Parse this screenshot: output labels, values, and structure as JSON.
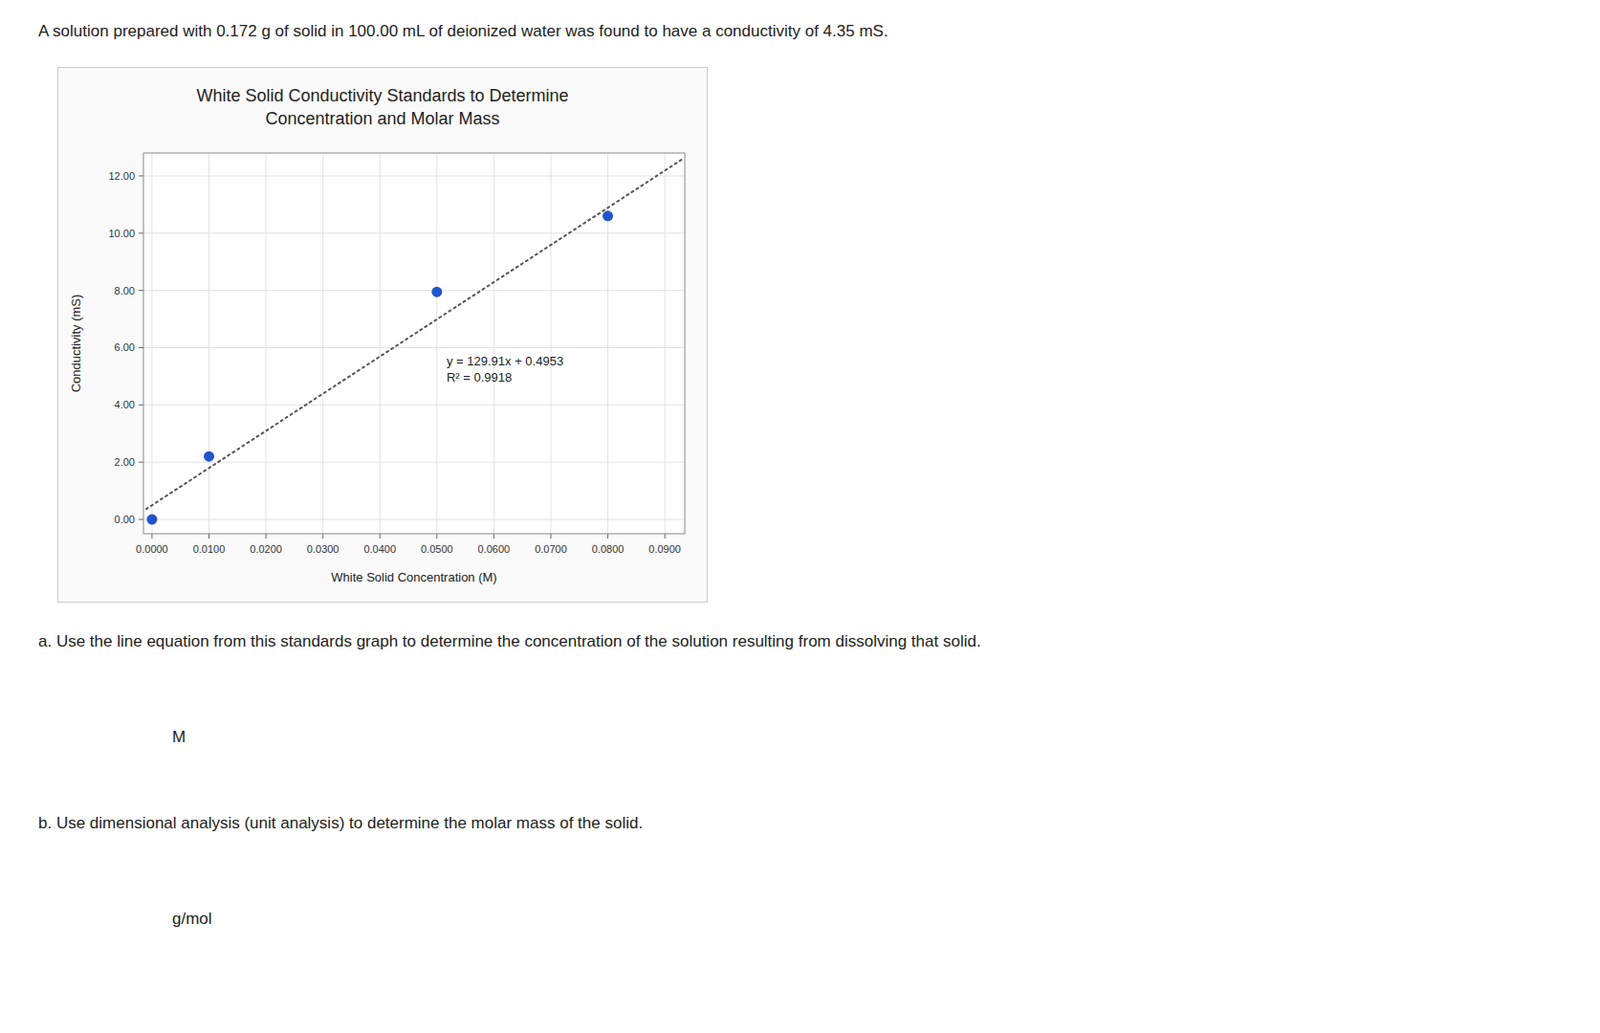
{
  "header": "A solution prepared with 0.172 g of solid in 100.00 mL of deionized water was found to have a conductivity of 4.35 mS.",
  "questions": [
    {
      "text": "a. Use the line equation from this standards graph to determine the concentration of the solution resulting from dissolving that solid.",
      "answer": "M"
    },
    {
      "text": "b. Use dimensional analysis (unit analysis) to determine the molar mass of the solid.",
      "answer": "g/mol"
    }
  ],
  "chart_data": {
    "type": "scatter",
    "title": "White Solid Conductivity Standards to Determine\nConcentration and Molar Mass",
    "xlabel": "White Solid Concentration  (M)",
    "ylabel": "Conductivity (mS)",
    "series": [
      {
        "type": "scatter",
        "color": "#2255cc",
        "marker": "circle",
        "x": [
          0.0,
          0.01,
          0.05,
          0.08
        ],
        "values": [
          0.0,
          2.2,
          7.95,
          10.6
        ]
      },
      {
        "type": "line",
        "color": "#555555",
        "line_style": "dotted",
        "x": [
          -0.001,
          0.093
        ],
        "values": [
          0.36539,
          12.57693
        ]
      }
    ],
    "annotations": [
      "y = 129.91x + 0.4953",
      "R² = 0.9918"
    ],
    "xlim": [
      -0.0015,
      0.0935
    ],
    "ylim": [
      -0.5,
      12.8
    ],
    "xticks": [
      {
        "value": 0.0,
        "label": "0.0000"
      },
      {
        "value": 0.01,
        "label": "0.0100"
      },
      {
        "value": 0.02,
        "label": "0.0200"
      },
      {
        "value": 0.03,
        "label": "0.0300"
      },
      {
        "value": 0.04,
        "label": "0.0400"
      },
      {
        "value": 0.05,
        "label": "0.0500"
      },
      {
        "value": 0.06,
        "label": "0.0600"
      },
      {
        "value": 0.07,
        "label": "0.0700"
      },
      {
        "value": 0.08,
        "label": "0.0800"
      },
      {
        "value": 0.09,
        "label": "0.0900"
      }
    ],
    "yticks": [
      {
        "value": 0.0,
        "label": "0.00"
      },
      {
        "value": 2.0,
        "label": "2.00"
      },
      {
        "value": 4.0,
        "label": "4.00"
      },
      {
        "value": 6.0,
        "label": "6.00"
      },
      {
        "value": 8.0,
        "label": "8.00"
      },
      {
        "value": 10.0,
        "label": "10.00"
      },
      {
        "value": 12.0,
        "label": "12.00"
      }
    ],
    "grid": true
  }
}
